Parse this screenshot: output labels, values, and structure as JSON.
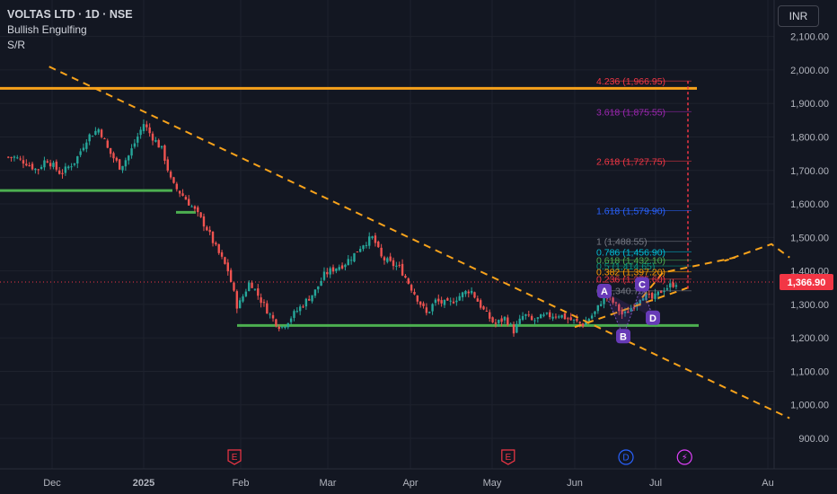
{
  "header": {
    "title": "VOLTAS LTD · 1D · NSE",
    "indicator1": "Bullish Engulfing",
    "indicator2": "S/R"
  },
  "currency_button": "INR",
  "colors": {
    "bg": "#131722",
    "up": "#26a69a",
    "down": "#ef5350",
    "resistance": "#f7a21b",
    "support": "#4caf50",
    "trendline": "#f7a21b",
    "pattern_points": "#673ab7",
    "price_tag": "#f23645"
  },
  "chart_data": {
    "type": "candlestick",
    "symbol": "VOLTAS LTD",
    "interval": "1D",
    "exchange": "NSE",
    "ylim": [
      860,
      2150
    ],
    "y_ticks": [
      900,
      1000,
      1100,
      1200,
      1300,
      1400,
      1500,
      1600,
      1700,
      1800,
      1900,
      2000,
      2100
    ],
    "y_tick_labels": [
      "900.00",
      "1,000.00",
      "1,100.00",
      "1,200.00",
      "1,300.00",
      "1,400.00",
      "1,500.00",
      "1,600.00",
      "1,700.00",
      "1,800.00",
      "1,900.00",
      "2,000.00",
      "2,100.00"
    ],
    "x_ticks": [
      {
        "label": "Dec",
        "date": "2024-12-01"
      },
      {
        "label": "2025",
        "date": "2025-01-01",
        "bold": true
      },
      {
        "label": "Feb",
        "date": "2025-02-01"
      },
      {
        "label": "Mar",
        "date": "2025-03-01"
      },
      {
        "label": "Apr",
        "date": "2025-04-01"
      },
      {
        "label": "May",
        "date": "2025-05-01"
      },
      {
        "label": "Jun",
        "date": "2025-06-01"
      },
      {
        "label": "Jul",
        "date": "2025-07-01"
      },
      {
        "label": "Au",
        "date": "2025-08-01"
      }
    ],
    "last_price": 1366.9,
    "last_price_label": "1,366.90",
    "close_series": [
      {
        "date": "2024-11-18",
        "close": 1740
      },
      {
        "date": "2024-11-22",
        "close": 1725
      },
      {
        "date": "2024-11-26",
        "close": 1700
      },
      {
        "date": "2024-11-29",
        "close": 1735
      },
      {
        "date": "2024-12-04",
        "close": 1690
      },
      {
        "date": "2024-12-09",
        "close": 1730
      },
      {
        "date": "2024-12-13",
        "close": 1800
      },
      {
        "date": "2024-12-17",
        "close": 1825
      },
      {
        "date": "2024-12-20",
        "close": 1760
      },
      {
        "date": "2024-12-24",
        "close": 1710
      },
      {
        "date": "2024-12-27",
        "close": 1745
      },
      {
        "date": "2025-01-01",
        "close": 1840
      },
      {
        "date": "2025-01-03",
        "close": 1810
      },
      {
        "date": "2025-01-07",
        "close": 1760
      },
      {
        "date": "2025-01-10",
        "close": 1660
      },
      {
        "date": "2025-01-14",
        "close": 1620
      },
      {
        "date": "2025-01-17",
        "close": 1585
      },
      {
        "date": "2025-01-21",
        "close": 1530
      },
      {
        "date": "2025-01-24",
        "close": 1470
      },
      {
        "date": "2025-01-28",
        "close": 1400
      },
      {
        "date": "2025-01-31",
        "close": 1290
      },
      {
        "date": "2025-02-04",
        "close": 1370
      },
      {
        "date": "2025-02-07",
        "close": 1320
      },
      {
        "date": "2025-02-11",
        "close": 1260
      },
      {
        "date": "2025-02-14",
        "close": 1230
      },
      {
        "date": "2025-02-18",
        "close": 1270
      },
      {
        "date": "2025-02-21",
        "close": 1300
      },
      {
        "date": "2025-02-25",
        "close": 1340
      },
      {
        "date": "2025-02-28",
        "close": 1390
      },
      {
        "date": "2025-03-04",
        "close": 1410
      },
      {
        "date": "2025-03-07",
        "close": 1420
      },
      {
        "date": "2025-03-11",
        "close": 1450
      },
      {
        "date": "2025-03-14",
        "close": 1480
      },
      {
        "date": "2025-03-18",
        "close": 1500
      },
      {
        "date": "2025-03-21",
        "close": 1440
      },
      {
        "date": "2025-03-25",
        "close": 1420
      },
      {
        "date": "2025-03-28",
        "close": 1410
      },
      {
        "date": "2025-04-02",
        "close": 1340
      },
      {
        "date": "2025-04-07",
        "close": 1270
      },
      {
        "date": "2025-04-10",
        "close": 1310
      },
      {
        "date": "2025-04-15",
        "close": 1300
      },
      {
        "date": "2025-04-18",
        "close": 1320
      },
      {
        "date": "2025-04-23",
        "close": 1345
      },
      {
        "date": "2025-04-28",
        "close": 1280
      },
      {
        "date": "2025-05-02",
        "close": 1240
      },
      {
        "date": "2025-05-06",
        "close": 1260
      },
      {
        "date": "2025-05-09",
        "close": 1220
      },
      {
        "date": "2025-05-13",
        "close": 1270
      },
      {
        "date": "2025-05-16",
        "close": 1250
      },
      {
        "date": "2025-05-21",
        "close": 1265
      },
      {
        "date": "2025-05-26",
        "close": 1270
      },
      {
        "date": "2025-05-30",
        "close": 1255
      },
      {
        "date": "2025-06-04",
        "close": 1240
      },
      {
        "date": "2025-06-09",
        "close": 1280
      },
      {
        "date": "2025-06-12",
        "close": 1330
      },
      {
        "date": "2025-06-16",
        "close": 1300
      },
      {
        "date": "2025-06-19",
        "close": 1265
      },
      {
        "date": "2025-06-23",
        "close": 1300
      },
      {
        "date": "2025-06-26",
        "close": 1330
      },
      {
        "date": "2025-06-30",
        "close": 1315
      },
      {
        "date": "2025-07-03",
        "close": 1345
      },
      {
        "date": "2025-07-07",
        "close": 1367
      }
    ],
    "horizontal_levels": [
      {
        "name": "resistance",
        "price": 1945,
        "color": "#f7a21b"
      },
      {
        "name": "support-dec",
        "price": 1640,
        "color": "#4caf50"
      },
      {
        "name": "support-jan",
        "price": 1575,
        "color": "#4caf50"
      },
      {
        "name": "support-main",
        "price": 1237,
        "color": "#4caf50"
      }
    ],
    "trendlines": [
      {
        "name": "downtrend",
        "from": {
          "date": "2024-11-30",
          "price": 2010
        },
        "to": {
          "date": "2025-08-07",
          "price": 960
        }
      },
      {
        "name": "upper-channel",
        "from": {
          "date": "2025-06-01",
          "price": 1232
        },
        "to": {
          "date": "2025-07-10",
          "price": 1350
        }
      }
    ],
    "projection": [
      {
        "date": "2025-06-26",
        "price": 1320
      },
      {
        "date": "2025-07-03",
        "price": 1395
      },
      {
        "date": "2025-07-23",
        "price": 1440
      },
      {
        "date": "2025-07-20",
        "price": 1430
      },
      {
        "date": "2025-08-02",
        "price": 1480
      },
      {
        "date": "2025-08-07",
        "price": 1440
      }
    ],
    "fibonacci": [
      {
        "ratio": "4.236",
        "price": "1,966.95",
        "value": 1966.95,
        "color": "#f23645"
      },
      {
        "ratio": "3.618",
        "price": "1,875.55",
        "value": 1875.55,
        "color": "#9c27b0"
      },
      {
        "ratio": "2.618",
        "price": "1,727.75",
        "value": 1727.75,
        "color": "#f23645"
      },
      {
        "ratio": "1.618",
        "price": "1,579.90",
        "value": 1579.9,
        "color": "#2962ff"
      },
      {
        "ratio": "1",
        "price": "1,488.55",
        "value": 1488.55,
        "color": "#787b86"
      },
      {
        "ratio": "0.786",
        "price": "1,456.90",
        "value": 1456.9,
        "color": "#00bcd4"
      },
      {
        "ratio": "0.618",
        "price": "1,432.10",
        "value": 1432.1,
        "color": "#4caf50"
      },
      {
        "ratio": "0.5",
        "price": "1,414.65",
        "value": 1414.65,
        "color": "#089981"
      },
      {
        "ratio": "0.382",
        "price": "1,397.20",
        "value": 1397.2,
        "color": "#ff9800"
      },
      {
        "ratio": "0.236",
        "price": "1,375.60",
        "value": 1375.6,
        "color": "#f23645"
      },
      {
        "ratio": "0",
        "price": "1,340.70",
        "value": 1340.7,
        "color": "#787b86"
      }
    ],
    "pattern_points": [
      {
        "label": "A",
        "date": "2025-06-12",
        "price": 1340
      },
      {
        "label": "B",
        "date": "2025-06-19",
        "price": 1205
      },
      {
        "label": "C",
        "date": "2025-06-26",
        "price": 1360
      },
      {
        "label": "D",
        "date": "2025-06-30",
        "price": 1260
      }
    ],
    "events": [
      {
        "type": "earnings",
        "label": "E",
        "date": "2025-01-30"
      },
      {
        "type": "earnings",
        "label": "E",
        "date": "2025-05-07"
      },
      {
        "type": "dividend",
        "label": "D",
        "date": "2025-06-20"
      },
      {
        "type": "split",
        "label": "⚡",
        "date": "2025-07-09"
      }
    ]
  }
}
